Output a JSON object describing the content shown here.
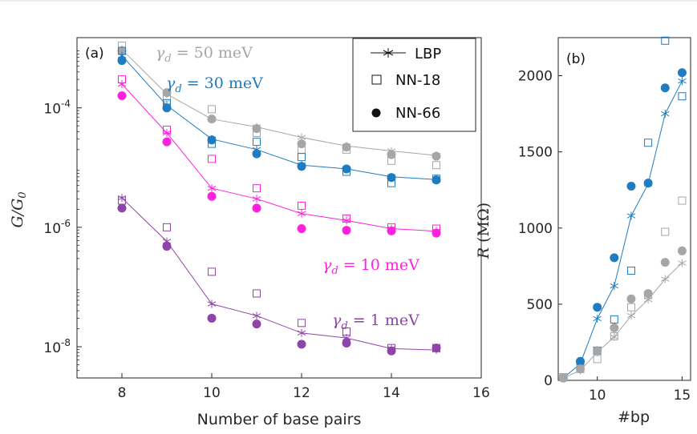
{
  "chart_data": [
    {
      "type": "scatter",
      "panel_label": "(a)",
      "xlabel": "Number of base pairs",
      "ylabel": "G/G",
      "ylabel_sub": "0",
      "x_scale": "linear",
      "y_scale": "log",
      "xlim": [
        7,
        16
      ],
      "ylim": [
        3e-09,
        0.0015
      ],
      "xticks": [
        8,
        10,
        12,
        14,
        16
      ],
      "yticks": [
        {
          "value": 0.0001,
          "base": "10",
          "exp": "-4"
        },
        {
          "value": 1e-06,
          "base": "10",
          "exp": "-6"
        },
        {
          "value": 1e-08,
          "base": "10",
          "exp": "-8"
        }
      ],
      "legend": {
        "position": "top-right",
        "entries": [
          {
            "label": "LBP",
            "marker": "star-line"
          },
          {
            "label": "NN-18",
            "marker": "open-square"
          },
          {
            "label": "NN-66",
            "marker": "filled-circle"
          }
        ]
      },
      "x": [
        8,
        9,
        10,
        11,
        12,
        13,
        14,
        15
      ],
      "series": [
        {
          "color": "#a6a6a6",
          "LBP": [
            0.00095,
            0.00017,
            6.5e-05,
            4.8e-05,
            3.2e-05,
            2.3e-05,
            1.9e-05,
            1.6e-05
          ],
          "NN18": [
            0.0011,
            0.00015,
            9.5e-05,
            3.8e-05,
            2e-05,
            2e-05,
            1.3e-05,
            1.1e-05
          ],
          "NN66": [
            0.0009,
            0.00018,
            6.5e-05,
            4.5e-05,
            2.5e-05,
            2.2e-05,
            1.65e-05,
            1.55e-05
          ]
        },
        {
          "color": "#1f7cc0",
          "LBP": [
            0.00075,
            0.00011,
            3e-05,
            2e-05,
            1.1e-05,
            9.5e-06,
            7e-06,
            6.3e-06
          ],
          "NN18": [
            0.0009,
            0.00012,
            2.5e-05,
            2.7e-05,
            1.5e-05,
            8.5e-06,
            5.5e-06,
            6.5e-06
          ],
          "NN66": [
            0.00062,
            0.0001,
            2.9e-05,
            1.7e-05,
            1.05e-05,
            9.5e-06,
            6.8e-06,
            6.2e-06
          ]
        },
        {
          "color": "#ff22dd",
          "LBP": [
            0.00025,
            3.8e-05,
            4.5e-06,
            3e-06,
            1.7e-06,
            1.3e-06,
            9.5e-07,
            8.6e-07
          ],
          "NN18": [
            0.0003,
            4.3e-05,
            1.4e-05,
            4.5e-06,
            2.3e-06,
            1.4e-06,
            1e-06,
            9.5e-07
          ],
          "NN66": [
            0.00016,
            2.7e-05,
            3.3e-06,
            2.1e-06,
            9.5e-07,
            8.9e-07,
            8.7e-07,
            8e-07
          ]
        },
        {
          "color": "#8e44a8",
          "LBP": [
            3.1e-06,
            5.8e-07,
            5.2e-08,
            3.3e-08,
            1.7e-08,
            1.4e-08,
            9.3e-09,
            8.8e-09
          ],
          "NN18": [
            2.8e-06,
            1e-06,
            1.8e-07,
            7.8e-08,
            2.5e-08,
            1.8e-08,
            9.5e-09,
            9.5e-09
          ],
          "NN66": [
            2.1e-06,
            4.8e-07,
            3e-08,
            2.4e-08,
            1.1e-08,
            1.15e-08,
            8.5e-09,
            9.5e-09
          ]
        }
      ],
      "annotations": [
        {
          "sym": "γ",
          "sub": "d",
          "rest": " = 50 meV",
          "color": "#a6a6a6"
        },
        {
          "sym": "γ",
          "sub": "d",
          "rest": " = 30 meV",
          "color": "#1f7cc0"
        },
        {
          "sym": "γ",
          "sub": "d",
          "rest": " = 10 meV",
          "color": "#ff22dd"
        },
        {
          "sym": "γ",
          "sub": "d",
          "rest": " = 1 meV",
          "color": "#8e44a8"
        }
      ]
    },
    {
      "type": "scatter",
      "panel_label": "(b)",
      "xlabel": "#bp",
      "ylabel_italic": "R",
      "ylabel_unit": "(MΩ)",
      "xlim": [
        7.7,
        15.5
      ],
      "ylim": [
        0,
        2250
      ],
      "xticks": [
        10,
        15
      ],
      "yticks": [
        0,
        500,
        1000,
        1500,
        2000
      ],
      "x": [
        8,
        9,
        10,
        11,
        12,
        13,
        14,
        15
      ],
      "series": [
        {
          "color": "#1f7cc0",
          "LBP": [
            15,
            110,
            405,
            620,
            1080,
            1290,
            1750,
            1965
          ],
          "NN18": [
            20,
            90,
            195,
            400,
            720,
            1560,
            2230,
            1865
          ],
          "NN66": [
            15,
            125,
            480,
            805,
            1275,
            1295,
            1920,
            2020
          ]
        },
        {
          "color": "#a6a6a6",
          "LBP": [
            15,
            65,
            185,
            285,
            425,
            530,
            665,
            770
          ],
          "NN18": [
            20,
            75,
            140,
            290,
            480,
            560,
            975,
            1180
          ],
          "NN66": [
            15,
            75,
            195,
            345,
            535,
            570,
            775,
            850
          ]
        }
      ]
    }
  ]
}
